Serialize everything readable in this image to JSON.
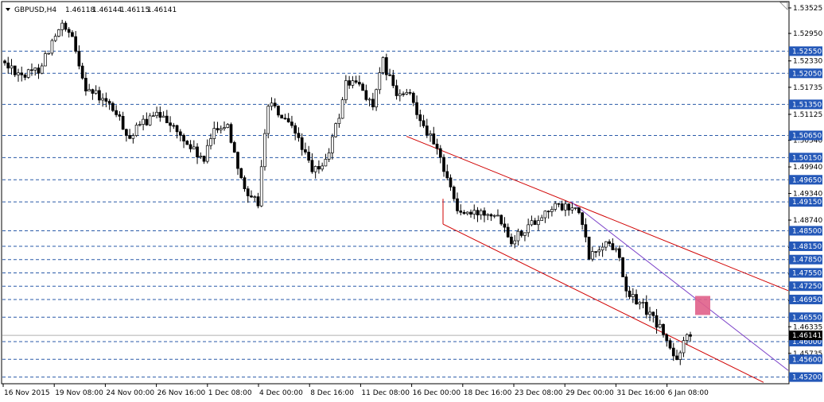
{
  "header": {
    "symbol": "GBPUSD,H4",
    "open": "1.46118",
    "high": "1.46144",
    "low": "1.46115",
    "close": "1.46141"
  },
  "chart_data": {
    "type": "candlestick",
    "symbol": "GBPUSD",
    "timeframe": "H4",
    "ylim": [
      1.4505,
      1.5365
    ],
    "y_ticks": [
      "1.53525",
      "1.52950",
      "1.52330",
      "1.51735",
      "1.51125",
      "1.50540",
      "1.49940",
      "1.49340",
      "1.48740",
      "1.48125",
      "1.47525",
      "1.46925",
      "1.46335",
      "1.45735"
    ],
    "x_labels": [
      "16 Nov 2015",
      "19 Nov 08:00",
      "24 Nov 00:00",
      "26 Nov 16:00",
      "1 Dec 08:00",
      "4 Dec 00:00",
      "8 Dec 16:00",
      "11 Dec 08:00",
      "16 Dec 00:00",
      "18 Dec 16:00",
      "23 Dec 08:00",
      "29 Dec 00:00",
      "31 Dec 16:00",
      "6 Jan 08:00"
    ],
    "horizontal_levels": [
      {
        "price": 1.5255,
        "label": "1.52550"
      },
      {
        "price": 1.5205,
        "label": "1.52050"
      },
      {
        "price": 1.5135,
        "label": "1.51350"
      },
      {
        "price": 1.5065,
        "label": "1.50650"
      },
      {
        "price": 1.5015,
        "label": "1.50150"
      },
      {
        "price": 1.4965,
        "label": "1.49650"
      },
      {
        "price": 1.4915,
        "label": "1.49150"
      },
      {
        "price": 1.485,
        "label": "1.48500"
      },
      {
        "price": 1.4815,
        "label": "1.48150"
      },
      {
        "price": 1.4785,
        "label": "1.47850"
      },
      {
        "price": 1.4755,
        "label": "1.47550"
      },
      {
        "price": 1.4725,
        "label": "1.47250"
      },
      {
        "price": 1.4695,
        "label": "1.46950"
      },
      {
        "price": 1.4655,
        "label": "1.46550"
      },
      {
        "price": 1.46,
        "label": "1.46000"
      },
      {
        "price": 1.456,
        "label": "1.45600"
      },
      {
        "price": 1.452,
        "label": "1.45200"
      }
    ],
    "current_price": {
      "price": 1.46141,
      "label": "1.46141"
    },
    "background": "#ffffff",
    "candle_color": "#000000",
    "level_color": "#2a5aa8",
    "label_bg": "#2458b8",
    "channel_color": "#d00000",
    "trendline_color": "#7a40c8",
    "zone_color": "#e0608a",
    "grid": false
  }
}
